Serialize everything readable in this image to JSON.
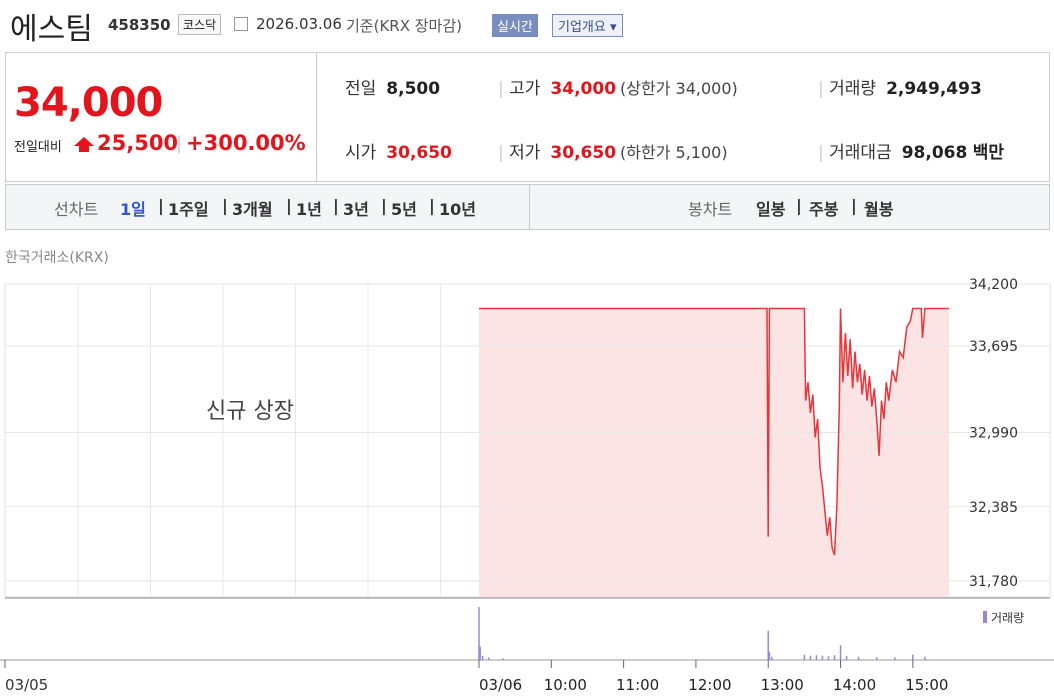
{
  "header": {
    "title": "에스팀",
    "code": "458350",
    "market": "코스닥",
    "date": "2026.03.06",
    "basis": "기준(KRX 장마감)",
    "realtime": "실시간",
    "overview": "기업개요"
  },
  "summary": {
    "price": "34,000",
    "change_label": "전일대비",
    "change": "25,500",
    "change_pct": "+300.00%"
  },
  "stats": [
    {
      "label": "전일",
      "value": "8,500"
    },
    {
      "label": "고가",
      "value": "34,000",
      "note": "(상한가 34,000)"
    },
    {
      "label": "거래량",
      "value": "2,949,493"
    },
    {
      "label": "시가",
      "value": "30,650"
    },
    {
      "label": "저가",
      "value": "30,650",
      "note": "(하한가 5,100)"
    },
    {
      "label": "거래대금",
      "value": "98,068",
      "unit": "백만"
    }
  ],
  "tabs": {
    "line_label": "선차트",
    "line_periods": [
      "1일",
      "1주일",
      "3개월",
      "1년",
      "3년",
      "5년",
      "10년"
    ],
    "candle_label": "봉차트",
    "candle_periods": [
      "일봉",
      "주봉",
      "월봉"
    ]
  },
  "chart_data": {
    "type": "line",
    "source": "한국거래소(KRX)",
    "annotation": "신규 상장",
    "prev_day_label": "03/05",
    "color": "#e8343a",
    "fill_color": "#fde4e4",
    "x": [
      "09:00",
      "12:59",
      "13:00",
      "13:01",
      "13:30",
      "13:31",
      "13:33",
      "13:35",
      "13:37",
      "13:39",
      "13:41",
      "13:43",
      "13:45",
      "13:47",
      "13:49",
      "13:51",
      "13:53",
      "13:55",
      "13:57",
      "13:59",
      "14:00",
      "14:02",
      "14:04",
      "14:06",
      "14:08",
      "14:10",
      "14:12",
      "14:14",
      "14:16",
      "14:18",
      "14:20",
      "14:22",
      "14:24",
      "14:26",
      "14:28",
      "14:30",
      "14:32",
      "14:34",
      "14:36",
      "14:38",
      "14:40",
      "14:43",
      "14:46",
      "14:49",
      "14:52",
      "14:55",
      "14:58",
      "15:00",
      "15:07",
      "15:08",
      "15:10",
      "15:30"
    ],
    "values": [
      34000,
      34000,
      32140,
      34000,
      34000,
      33250,
      33400,
      33150,
      33300,
      32950,
      33100,
      32700,
      32550,
      32350,
      32150,
      32300,
      32050,
      31990,
      32400,
      33200,
      34000,
      33400,
      33800,
      33450,
      33750,
      33350,
      33650,
      33400,
      33550,
      33300,
      33500,
      33250,
      33450,
      33200,
      33350,
      33100,
      32800,
      33250,
      33100,
      33400,
      33250,
      33500,
      33400,
      33650,
      33600,
      33850,
      33900,
      34000,
      34000,
      33760,
      34000,
      34000
    ],
    "xlim": [
      "09:00",
      "15:30"
    ],
    "xticks": [
      {
        "value": "09:00",
        "label": "03/06"
      },
      "10:00",
      "11:00",
      "12:00",
      "13:00",
      "14:00",
      "15:00"
    ],
    "ylim": [
      31780,
      34200
    ],
    "yticks": [
      {
        "value": 34200,
        "label": "34,200"
      },
      {
        "value": 33695,
        "label": "33,695"
      },
      {
        "value": 32990,
        "label": "32,990"
      },
      {
        "value": 32385,
        "label": "32,385"
      },
      {
        "value": 31780,
        "label": "31,780"
      }
    ],
    "grid": true,
    "volume": {
      "name": "거래량",
      "color": "#9a86d8",
      "x": [
        "09:00",
        "09:01",
        "09:03",
        "09:08",
        "09:20",
        "13:00",
        "13:01",
        "13:03",
        "13:30",
        "13:35",
        "13:40",
        "13:45",
        "13:50",
        "13:55",
        "14:00",
        "14:05",
        "14:15",
        "14:30",
        "14:45",
        "15:00",
        "15:10"
      ],
      "values": [
        100,
        25,
        8,
        5,
        3,
        55,
        15,
        6,
        10,
        8,
        9,
        8,
        7,
        9,
        28,
        8,
        6,
        5,
        5,
        10,
        6
      ]
    }
  }
}
